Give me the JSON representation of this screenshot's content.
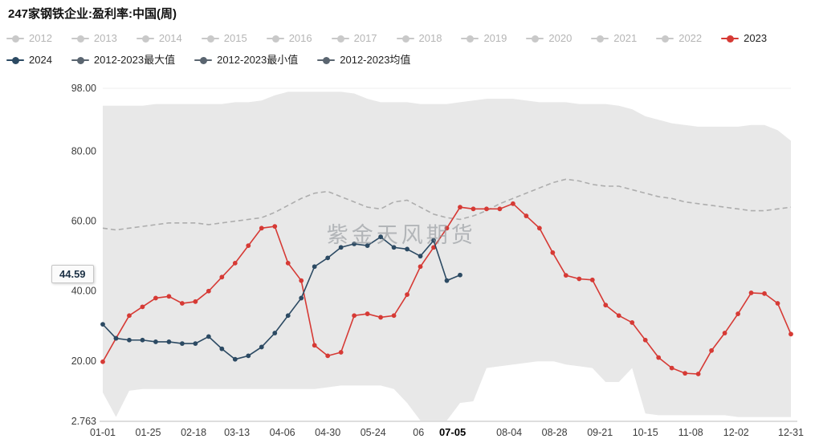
{
  "page": {
    "title": "247家钢铁企业:盈利率:中国(周)"
  },
  "watermark": "紫金天风期货",
  "annotation": {
    "current_value": "44.59"
  },
  "legend": {
    "row1": [
      {
        "label": "2012",
        "color": "#c9c9c9",
        "text_color": "#b5b5b5",
        "active": false
      },
      {
        "label": "2013",
        "color": "#c9c9c9",
        "text_color": "#b5b5b5",
        "active": false
      },
      {
        "label": "2014",
        "color": "#c9c9c9",
        "text_color": "#b5b5b5",
        "active": false
      },
      {
        "label": "2015",
        "color": "#c9c9c9",
        "text_color": "#b5b5b5",
        "active": false
      },
      {
        "label": "2016",
        "color": "#c9c9c9",
        "text_color": "#b5b5b5",
        "active": false
      },
      {
        "label": "2017",
        "color": "#c9c9c9",
        "text_color": "#b5b5b5",
        "active": false
      },
      {
        "label": "2018",
        "color": "#c9c9c9",
        "text_color": "#b5b5b5",
        "active": false
      },
      {
        "label": "2019",
        "color": "#c9c9c9",
        "text_color": "#b5b5b5",
        "active": false
      },
      {
        "label": "2020",
        "color": "#c9c9c9",
        "text_color": "#b5b5b5",
        "active": false
      },
      {
        "label": "2021",
        "color": "#c9c9c9",
        "text_color": "#b5b5b5",
        "active": false
      },
      {
        "label": "2022",
        "color": "#c9c9c9",
        "text_color": "#b5b5b5",
        "active": false
      },
      {
        "label": "2023",
        "color": "#d63a35",
        "text_color": "#222222",
        "active": true
      }
    ],
    "row2": [
      {
        "label": "2024",
        "color": "#2c4a63",
        "text_color": "#222222",
        "active": true
      },
      {
        "label": "2012-2023最大值",
        "color": "#5a6570",
        "text_color": "#222222",
        "active": true
      },
      {
        "label": "2012-2023最小值",
        "color": "#5a6570",
        "text_color": "#222222",
        "active": true
      },
      {
        "label": "2012-2023均值",
        "color": "#5a6570",
        "text_color": "#222222",
        "active": true
      }
    ]
  },
  "chart_data": {
    "type": "line",
    "title": "247家钢铁企业:盈利率:中国(周)",
    "xlabel": "",
    "ylabel": "",
    "ylim": [
      2.763,
      98.0
    ],
    "x_weeks": 53,
    "grid": false,
    "legend_position": "top",
    "yticks": [
      {
        "label": "98.00",
        "value": 98.0
      },
      {
        "label": "80.00",
        "value": 80.0
      },
      {
        "label": "60.00",
        "value": 60.0
      },
      {
        "label": "40.00",
        "value": 40.0
      },
      {
        "label": "20.00",
        "value": 20.0
      },
      {
        "label": "2.763",
        "value": 2.763
      }
    ],
    "xticks": [
      {
        "label": "01-01",
        "pos": 0
      },
      {
        "label": "01-25",
        "pos": 3.43
      },
      {
        "label": "02-18",
        "pos": 6.86
      },
      {
        "label": "03-13",
        "pos": 10.14
      },
      {
        "label": "04-06",
        "pos": 13.57
      },
      {
        "label": "04-30",
        "pos": 17.0
      },
      {
        "label": "05-24",
        "pos": 20.43
      },
      {
        "label": "06",
        "pos": 23.86
      },
      {
        "label": "07-05",
        "pos": 26.43,
        "bold": true
      },
      {
        "label": "08-04",
        "pos": 30.71
      },
      {
        "label": "08-28",
        "pos": 34.14
      },
      {
        "label": "09-21",
        "pos": 37.57
      },
      {
        "label": "10-15",
        "pos": 41.0
      },
      {
        "label": "11-08",
        "pos": 44.43
      },
      {
        "label": "12-02",
        "pos": 47.86
      },
      {
        "label": "12-31",
        "pos": 52
      }
    ],
    "band": {
      "name": "2012-2023最大值/最小值区间",
      "color": "#e8e8e8",
      "max": [
        93,
        93,
        93,
        93,
        93.5,
        93.5,
        93.5,
        93.5,
        93.5,
        93.5,
        94,
        94,
        94.5,
        96,
        97,
        97,
        97,
        97,
        97,
        96.5,
        95,
        94,
        94,
        94,
        93.5,
        93.5,
        93.5,
        94,
        94.5,
        95,
        95,
        95,
        94.5,
        94,
        94,
        94,
        93.5,
        93.5,
        93.5,
        93,
        92,
        90,
        89,
        88,
        87.5,
        87,
        87,
        87,
        87,
        87.5,
        87.5,
        86,
        83
      ],
      "min": [
        11,
        4,
        11.5,
        12,
        12,
        12,
        12,
        12,
        12,
        12,
        12,
        12,
        12,
        12,
        12,
        12,
        12,
        12.5,
        13,
        13,
        13,
        13,
        12,
        8,
        3,
        3,
        3,
        8,
        8.5,
        18,
        18.5,
        19,
        19.5,
        20,
        20,
        19,
        18.5,
        18,
        14,
        14,
        18,
        5,
        4.5,
        4.5,
        4.5,
        4.5,
        4.5,
        4.5,
        4,
        4,
        4,
        4,
        4
      ]
    },
    "series": [
      {
        "name": "2012-2023均值",
        "style": "dashed",
        "color": "#adadad",
        "marker": false,
        "values": [
          58,
          57.5,
          58,
          58.5,
          59,
          59.5,
          59.5,
          59.5,
          59,
          59.5,
          60,
          60.5,
          61,
          62.5,
          64.5,
          66.5,
          68,
          68.5,
          67,
          65.5,
          64,
          63.5,
          65.5,
          66,
          64,
          62,
          61,
          60.5,
          61.5,
          63,
          65,
          66.5,
          68,
          69.5,
          71,
          72,
          71.5,
          70.5,
          70,
          70,
          69,
          68,
          67,
          66.5,
          65.5,
          65,
          64.5,
          64,
          63.5,
          63,
          63,
          63.5,
          64
        ]
      },
      {
        "name": "2023",
        "style": "solid",
        "color": "#d63a35",
        "marker": true,
        "values": [
          19.8,
          26.5,
          33,
          35.5,
          38,
          38.5,
          36.5,
          37,
          40,
          44,
          48,
          53,
          58,
          58.5,
          48,
          43,
          24.5,
          21.5,
          22.5,
          33,
          33.5,
          32.5,
          33,
          39,
          47,
          52.5,
          58,
          64,
          63.5,
          63.5,
          63.5,
          65,
          61.5,
          58,
          51,
          44.5,
          43.5,
          43.2,
          36,
          33,
          31,
          26,
          21,
          18,
          16.5,
          16.3,
          23,
          28,
          33.5,
          39.5,
          39.3,
          36.5,
          27.7
        ]
      },
      {
        "name": "2024",
        "style": "solid",
        "color": "#2c4a63",
        "marker": true,
        "end_label": "44.59",
        "values": [
          30.5,
          26.5,
          26,
          26,
          25.5,
          25.5,
          25,
          25,
          27,
          23.5,
          20.5,
          21.5,
          24,
          28,
          33,
          38,
          47,
          49.5,
          52.5,
          53.5,
          53,
          55.5,
          52.5,
          52,
          50,
          54.5,
          43,
          44.59
        ]
      }
    ]
  }
}
